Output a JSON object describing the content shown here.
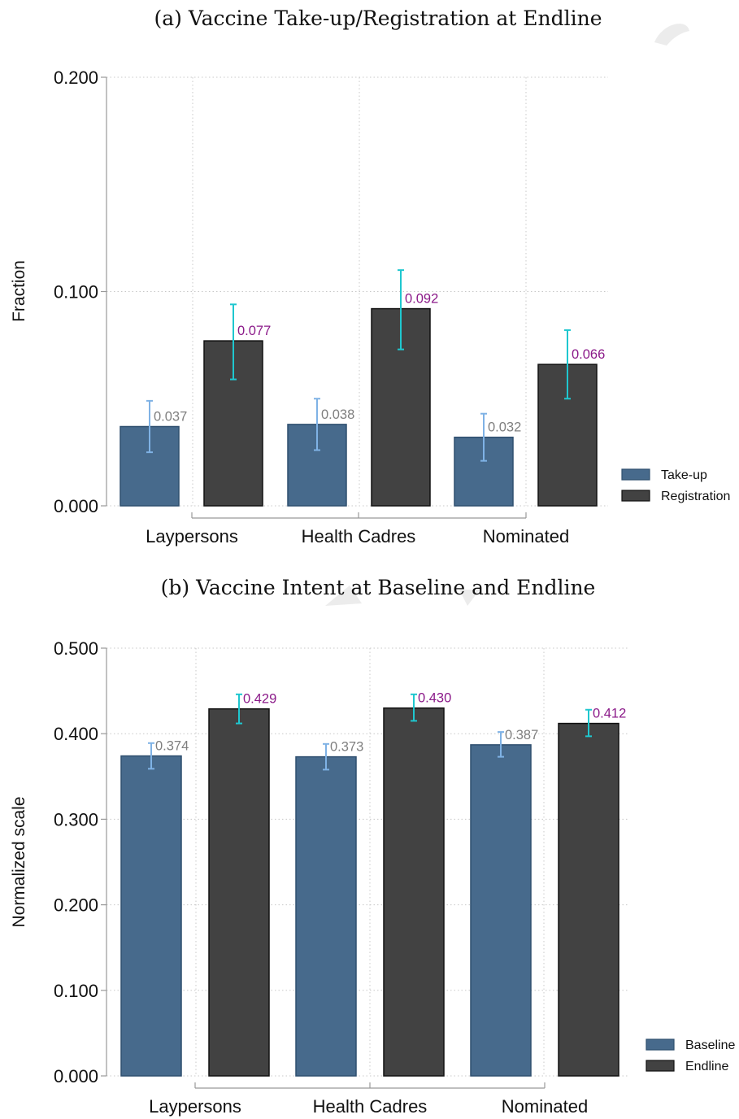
{
  "colors": {
    "bar_a": "#476a8c",
    "bar_b": "#424242",
    "err_a": "#7fb2e5",
    "err_b": "#1fc7cf",
    "label_a": "#7f7f7f",
    "label_b": "#8b1a89"
  },
  "chart_data": [
    {
      "type": "bar",
      "title": "(a) Vaccine Take-up/Registration at Endline",
      "xlabel": "",
      "ylabel": "Fraction",
      "ylim": [
        0,
        0.2
      ],
      "yticks": [
        "0.000",
        "0.100",
        "0.200"
      ],
      "categories": [
        "Laypersons",
        "Health Cadres",
        "Nominated"
      ],
      "legend_position": "bottom-right",
      "grid": true,
      "series": [
        {
          "name": "Take-up",
          "values": [
            0.037,
            0.038,
            0.032
          ],
          "labels": [
            "0.037",
            "0.038",
            "0.032"
          ],
          "ci": [
            [
              0.025,
              0.049
            ],
            [
              0.026,
              0.05
            ],
            [
              0.021,
              0.043
            ]
          ]
        },
        {
          "name": "Registration",
          "values": [
            0.077,
            0.092,
            0.066
          ],
          "labels": [
            "0.077",
            "0.092",
            "0.066"
          ],
          "ci": [
            [
              0.059,
              0.094
            ],
            [
              0.073,
              0.11
            ],
            [
              0.05,
              0.082
            ]
          ]
        }
      ]
    },
    {
      "type": "bar",
      "title": "(b) Vaccine Intent at Baseline and Endline",
      "xlabel": "",
      "ylabel": "Normalized scale",
      "ylim": [
        0,
        0.5
      ],
      "yticks": [
        "0.000",
        "0.100",
        "0.200",
        "0.300",
        "0.400",
        "0.500"
      ],
      "categories": [
        "Laypersons",
        "Health Cadres",
        "Nominated"
      ],
      "legend_position": "bottom-right",
      "grid": true,
      "series": [
        {
          "name": "Baseline",
          "values": [
            0.374,
            0.373,
            0.387
          ],
          "labels": [
            "0.374",
            "0.373",
            "0.387"
          ],
          "ci": [
            [
              0.359,
              0.389
            ],
            [
              0.358,
              0.388
            ],
            [
              0.373,
              0.402
            ]
          ]
        },
        {
          "name": "Endline",
          "values": [
            0.429,
            0.43,
            0.412
          ],
          "labels": [
            "0.429",
            "0.430",
            "0.412"
          ],
          "ci": [
            [
              0.412,
              0.446
            ],
            [
              0.415,
              0.446
            ],
            [
              0.397,
              0.428
            ]
          ]
        }
      ]
    }
  ]
}
